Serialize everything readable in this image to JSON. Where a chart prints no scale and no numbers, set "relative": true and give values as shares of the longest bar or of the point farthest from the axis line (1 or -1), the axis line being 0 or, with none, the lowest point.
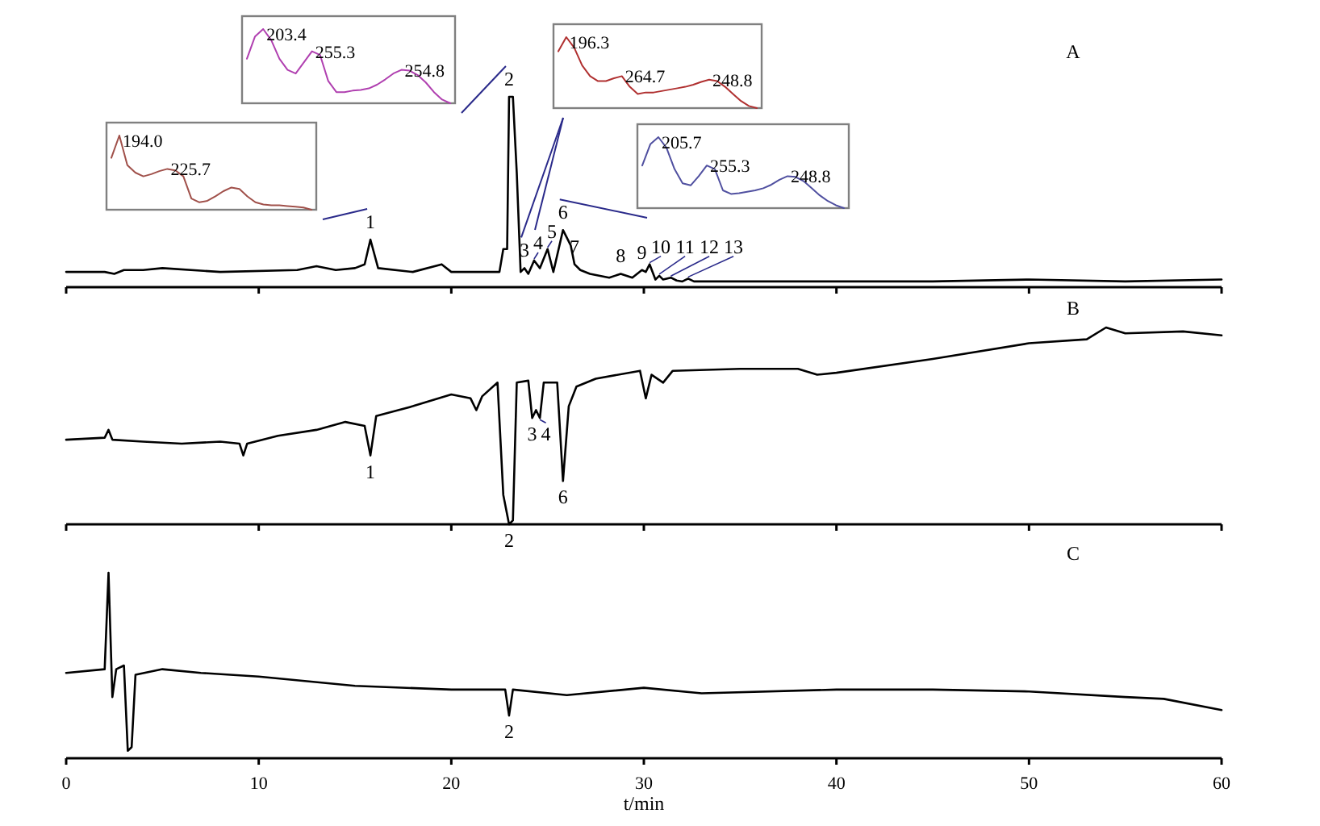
{
  "chart_data": [
    {
      "type": "line",
      "title": "A",
      "relative": true,
      "color": "#000000",
      "xlim": [
        0,
        60
      ],
      "xticks": [
        0,
        10,
        20,
        30,
        40,
        50,
        60
      ],
      "tick_labels": false,
      "x": [
        0,
        2,
        2.5,
        3,
        4,
        5,
        8,
        12,
        13,
        14,
        15,
        15.5,
        15.8,
        16.2,
        18,
        19.5,
        20,
        22.5,
        22.7,
        22.9,
        23.0,
        23.2,
        23.4,
        23.6,
        23.8,
        24.0,
        24.3,
        24.6,
        25.0,
        25.3,
        25.8,
        26.2,
        26.4,
        26.7,
        27.2,
        28.2,
        28.8,
        29.4,
        29.9,
        30.1,
        30.3,
        30.6,
        30.8,
        31.0,
        31.4,
        31.7,
        32.0,
        32.3,
        32.6,
        35,
        40,
        45,
        50,
        55,
        60
      ],
      "values": [
        0.08,
        0.08,
        0.07,
        0.09,
        0.09,
        0.1,
        0.08,
        0.09,
        0.11,
        0.09,
        0.1,
        0.12,
        0.25,
        0.1,
        0.08,
        0.12,
        0.08,
        0.08,
        0.2,
        0.2,
        1.0,
        1.0,
        0.6,
        0.08,
        0.1,
        0.07,
        0.14,
        0.1,
        0.2,
        0.08,
        0.3,
        0.22,
        0.12,
        0.09,
        0.07,
        0.05,
        0.07,
        0.05,
        0.09,
        0.08,
        0.12,
        0.04,
        0.06,
        0.04,
        0.05,
        0.035,
        0.03,
        0.045,
        0.03,
        0.03,
        0.03,
        0.03,
        0.04,
        0.03,
        0.04
      ],
      "annotations": [
        {
          "text": "1",
          "x": 15.8,
          "y": 0.25
        },
        {
          "text": "2",
          "x": 23.0,
          "y": 1.0
        },
        {
          "text": "3",
          "x": 23.8,
          "y": 0.1
        },
        {
          "text": "4",
          "x": 24.3,
          "y": 0.14
        },
        {
          "text": "5",
          "x": 25.0,
          "y": 0.2
        },
        {
          "text": "6",
          "x": 25.8,
          "y": 0.3
        },
        {
          "text": "7",
          "x": 26.4,
          "y": 0.12
        },
        {
          "text": "8",
          "x": 28.8,
          "y": 0.07
        },
        {
          "text": "9",
          "x": 29.9,
          "y": 0.09
        },
        {
          "text": "10",
          "x": 30.3,
          "y": 0.12
        },
        {
          "text": "11",
          "x": 30.8,
          "y": 0.06
        },
        {
          "text": "12",
          "x": 31.4,
          "y": 0.05
        },
        {
          "text": "13",
          "x": 32.3,
          "y": 0.045
        }
      ]
    },
    {
      "type": "line",
      "title": "B",
      "relative": true,
      "color": "#000000",
      "xlim": [
        0,
        60
      ],
      "xticks": [
        0,
        10,
        20,
        30,
        40,
        50,
        60
      ],
      "tick_labels": false,
      "x": [
        0,
        2,
        2.2,
        2.4,
        4,
        6,
        8,
        9,
        9.2,
        9.4,
        11,
        13,
        14.5,
        15.5,
        15.8,
        16.1,
        18,
        20,
        21,
        21.3,
        21.6,
        22.4,
        22.7,
        23.0,
        23.2,
        23.4,
        24,
        24.2,
        24.4,
        24.6,
        24.8,
        25.5,
        25.8,
        26.1,
        26.5,
        27.5,
        29.8,
        30.1,
        30.4,
        31,
        31.5,
        35,
        38,
        39,
        40,
        45,
        50,
        53,
        54,
        55,
        58,
        60
      ],
      "values": [
        0.43,
        0.44,
        0.48,
        0.43,
        0.42,
        0.41,
        0.42,
        0.41,
        0.35,
        0.41,
        0.45,
        0.48,
        0.52,
        0.5,
        0.35,
        0.55,
        0.6,
        0.66,
        0.64,
        0.58,
        0.65,
        0.72,
        0.15,
        0,
        0.02,
        0.72,
        0.73,
        0.54,
        0.58,
        0.54,
        0.72,
        0.72,
        0.22,
        0.6,
        0.7,
        0.74,
        0.78,
        0.64,
        0.76,
        0.72,
        0.78,
        0.79,
        0.79,
        0.76,
        0.77,
        0.84,
        0.92,
        0.94,
        1.0,
        0.97,
        0.98,
        0.96
      ],
      "annotations": [
        {
          "text": "1",
          "x": 15.8,
          "y": 0.35
        },
        {
          "text": "2",
          "x": 23.0,
          "y": 0
        },
        {
          "text": "3",
          "x": 24.2,
          "y": 0.54
        },
        {
          "text": "4",
          "x": 24.6,
          "y": 0.54
        },
        {
          "text": "6",
          "x": 25.8,
          "y": 0.22
        }
      ]
    },
    {
      "type": "line",
      "title": "C",
      "relative": true,
      "color": "#000000",
      "xlim": [
        0,
        60
      ],
      "xticks": [
        0,
        10,
        20,
        30,
        40,
        50,
        60
      ],
      "xlabel": "t/min",
      "x": [
        0,
        2,
        2.2,
        2.4,
        2.6,
        3.0,
        3.2,
        3.4,
        3.6,
        5,
        7,
        10,
        15,
        20,
        22.8,
        23.0,
        23.2,
        26,
        30,
        33,
        40,
        45,
        50,
        55,
        57,
        60
      ],
      "values": [
        0.46,
        0.48,
        1.0,
        0.33,
        0.48,
        0.5,
        0.04,
        0.06,
        0.45,
        0.48,
        0.46,
        0.44,
        0.39,
        0.37,
        0.37,
        0.23,
        0.37,
        0.34,
        0.38,
        0.35,
        0.37,
        0.37,
        0.36,
        0.33,
        0.32,
        0.26
      ],
      "annotations": [
        {
          "text": "2",
          "x": 23.0,
          "y": 0.23
        }
      ]
    },
    {
      "type": "line",
      "relative": true,
      "color": "#a0504a",
      "categories": [
        null,
        null,
        null,
        null,
        null,
        null,
        null,
        null,
        null,
        null,
        null,
        null,
        null,
        null,
        null,
        null,
        null,
        null,
        null,
        null,
        null,
        null,
        null,
        null,
        null,
        null
      ],
      "values": [
        0.7,
        1.0,
        0.6,
        0.5,
        0.45,
        0.48,
        0.52,
        0.55,
        0.53,
        0.45,
        0.15,
        0.1,
        0.12,
        0.18,
        0.25,
        0.3,
        0.28,
        0.18,
        0.1,
        0.07,
        0.06,
        0.06,
        0.05,
        0.04,
        0.03,
        0.0
      ],
      "annotations": [
        "194.0",
        "225.7"
      ]
    },
    {
      "type": "line",
      "relative": true,
      "color": "#b040b0",
      "categories": [
        null,
        null,
        null,
        null,
        null,
        null,
        null,
        null,
        null,
        null,
        null,
        null,
        null,
        null,
        null,
        null,
        null,
        null,
        null,
        null,
        null,
        null,
        null,
        null,
        null,
        null
      ],
      "values": [
        0.6,
        0.9,
        1.0,
        0.85,
        0.6,
        0.45,
        0.4,
        0.55,
        0.7,
        0.65,
        0.3,
        0.15,
        0.15,
        0.17,
        0.18,
        0.2,
        0.25,
        0.32,
        0.4,
        0.45,
        0.44,
        0.38,
        0.28,
        0.15,
        0.05,
        0.0
      ],
      "annotations": [
        "203.4",
        "255.3",
        "254.8"
      ]
    },
    {
      "type": "line",
      "relative": true,
      "color": "#b03030",
      "categories": [
        null,
        null,
        null,
        null,
        null,
        null,
        null,
        null,
        null,
        null,
        null,
        null,
        null,
        null,
        null,
        null,
        null,
        null,
        null,
        null,
        null,
        null,
        null,
        null,
        null,
        null
      ],
      "values": [
        0.8,
        1.0,
        0.85,
        0.6,
        0.45,
        0.38,
        0.38,
        0.42,
        0.45,
        0.3,
        0.2,
        0.22,
        0.22,
        0.24,
        0.26,
        0.28,
        0.3,
        0.33,
        0.37,
        0.4,
        0.38,
        0.3,
        0.2,
        0.1,
        0.03,
        0.0
      ],
      "annotations": [
        "196.3",
        "264.7",
        "248.8"
      ]
    },
    {
      "type": "line",
      "relative": true,
      "color": "#5050a0",
      "categories": [
        null,
        null,
        null,
        null,
        null,
        null,
        null,
        null,
        null,
        null,
        null,
        null,
        null,
        null,
        null,
        null,
        null,
        null,
        null,
        null,
        null,
        null,
        null,
        null,
        null,
        null
      ],
      "values": [
        0.6,
        0.9,
        1.0,
        0.85,
        0.55,
        0.35,
        0.32,
        0.45,
        0.6,
        0.55,
        0.25,
        0.2,
        0.21,
        0.23,
        0.25,
        0.28,
        0.33,
        0.4,
        0.45,
        0.44,
        0.38,
        0.28,
        0.18,
        0.1,
        0.04,
        0.0
      ],
      "annotations": [
        "205.7",
        "255.3",
        "248.8"
      ]
    }
  ]
}
